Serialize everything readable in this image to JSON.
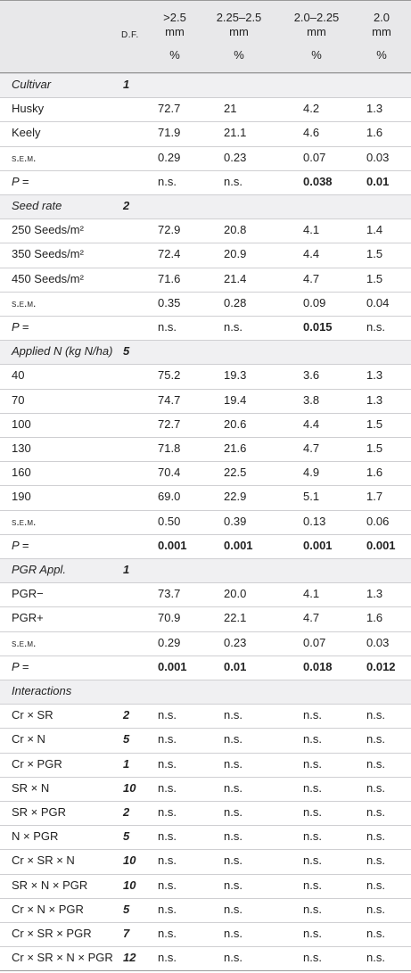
{
  "header": {
    "df": "d.f.",
    "columns": [
      ">2.5\nmm",
      "2.25–2.5\nmm",
      "2.0–2.25\nmm",
      "2.0\nmm"
    ],
    "units": [
      "%",
      "%",
      "%",
      "%"
    ]
  },
  "sections": [
    {
      "title": "Cultivar",
      "df": "1",
      "rows": [
        {
          "label": "Husky",
          "values": [
            "72.7",
            "21",
            "4.2",
            "1.3"
          ]
        },
        {
          "label": "Keely",
          "values": [
            "71.9",
            "21.1",
            "4.6",
            "1.6"
          ]
        },
        {
          "label": "s.e.m.",
          "style": "smallcaps",
          "values": [
            "0.29",
            "0.23",
            "0.07",
            "0.03"
          ]
        },
        {
          "label": "P =",
          "style": "italic",
          "values": [
            "n.s.",
            "n.s.",
            "0.038",
            "0.01"
          ],
          "bold": [
            false,
            false,
            true,
            true
          ]
        }
      ]
    },
    {
      "title": "Seed rate",
      "df": "2",
      "rows": [
        {
          "label": "250 Seeds/m²",
          "values": [
            "72.9",
            "20.8",
            "4.1",
            "1.4"
          ]
        },
        {
          "label": "350 Seeds/m²",
          "values": [
            "72.4",
            "20.9",
            "4.4",
            "1.5"
          ]
        },
        {
          "label": "450 Seeds/m²",
          "values": [
            "71.6",
            "21.4",
            "4.7",
            "1.5"
          ]
        },
        {
          "label": "s.e.m.",
          "style": "smallcaps",
          "values": [
            "0.35",
            "0.28",
            "0.09",
            "0.04"
          ]
        },
        {
          "label": "P =",
          "style": "italic",
          "values": [
            "n.s.",
            "n.s.",
            "0.015",
            "n.s."
          ],
          "bold": [
            false,
            false,
            true,
            false
          ]
        }
      ]
    },
    {
      "title": "Applied N (kg N/ha)",
      "df": "5",
      "rows": [
        {
          "label": "40",
          "values": [
            "75.2",
            "19.3",
            "3.6",
            "1.3"
          ]
        },
        {
          "label": "70",
          "values": [
            "74.7",
            "19.4",
            "3.8",
            "1.3"
          ]
        },
        {
          "label": "100",
          "values": [
            "72.7",
            "20.6",
            "4.4",
            "1.5"
          ]
        },
        {
          "label": "130",
          "values": [
            "71.8",
            "21.6",
            "4.7",
            "1.5"
          ]
        },
        {
          "label": "160",
          "values": [
            "70.4",
            "22.5",
            "4.9",
            "1.6"
          ]
        },
        {
          "label": "190",
          "values": [
            "69.0",
            "22.9",
            "5.1",
            "1.7"
          ]
        },
        {
          "label": "s.e.m.",
          "style": "smallcaps",
          "values": [
            "0.50",
            "0.39",
            "0.13",
            "0.06"
          ]
        },
        {
          "label": "P =",
          "style": "italic",
          "values": [
            "0.001",
            "0.001",
            "0.001",
            "0.001"
          ],
          "bold": [
            true,
            true,
            true,
            true
          ]
        }
      ]
    },
    {
      "title": "PGR Appl.",
      "df": "1",
      "rows": [
        {
          "label": "PGR−",
          "values": [
            "73.7",
            "20.0",
            "4.1",
            "1.3"
          ]
        },
        {
          "label": "PGR+",
          "values": [
            "70.9",
            "22.1",
            "4.7",
            "1.6"
          ]
        },
        {
          "label": "s.e.m.",
          "style": "smallcaps",
          "values": [
            "0.29",
            "0.23",
            "0.07",
            "0.03"
          ]
        },
        {
          "label": "P =",
          "style": "italic",
          "values": [
            "0.001",
            "0.01",
            "0.018",
            "0.012"
          ],
          "bold": [
            true,
            true,
            true,
            true
          ]
        }
      ]
    },
    {
      "title": "Interactions",
      "rows": [
        {
          "label": "Cr × SR",
          "df": "2",
          "values": [
            "n.s.",
            "n.s.",
            "n.s.",
            "n.s."
          ]
        },
        {
          "label": "Cr × N",
          "df": "5",
          "values": [
            "n.s.",
            "n.s.",
            "n.s.",
            "n.s."
          ]
        },
        {
          "label": "Cr × PGR",
          "df": "1",
          "values": [
            "n.s.",
            "n.s.",
            "n.s.",
            "n.s."
          ]
        },
        {
          "label": "SR × N",
          "df": "10",
          "values": [
            "n.s.",
            "n.s.",
            "n.s.",
            "n.s."
          ]
        },
        {
          "label": "SR × PGR",
          "df": "2",
          "values": [
            "n.s.",
            "n.s.",
            "n.s.",
            "n.s."
          ]
        },
        {
          "label": "N × PGR",
          "df": "5",
          "values": [
            "n.s.",
            "n.s.",
            "n.s.",
            "n.s."
          ]
        },
        {
          "label": "Cr × SR × N",
          "df": "10",
          "values": [
            "n.s.",
            "n.s.",
            "n.s.",
            "n.s."
          ]
        },
        {
          "label": "SR × N × PGR",
          "df": "10",
          "values": [
            "n.s.",
            "n.s.",
            "n.s.",
            "n.s."
          ]
        },
        {
          "label": "Cr × N × PGR",
          "df": "5",
          "values": [
            "n.s.",
            "n.s.",
            "n.s.",
            "n.s."
          ]
        },
        {
          "label": "Cr × SR × PGR",
          "df": "7",
          "values": [
            "n.s.",
            "n.s.",
            "n.s.",
            "n.s."
          ]
        },
        {
          "label": "Cr × SR × N × PGR",
          "df": "12",
          "values": [
            "n.s.",
            "n.s.",
            "n.s.",
            "n.s."
          ]
        }
      ]
    }
  ]
}
